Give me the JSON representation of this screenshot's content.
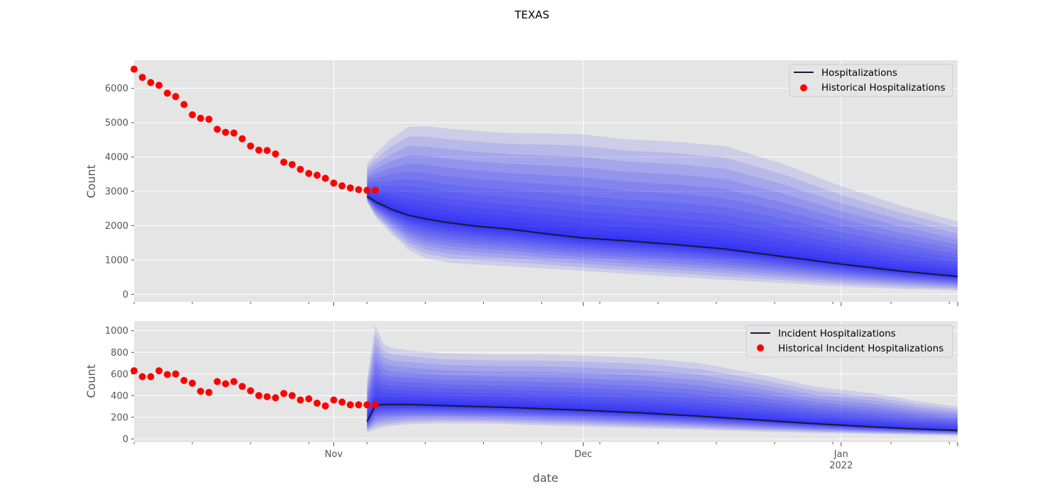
{
  "figure": {
    "suptitle": "TEXAS",
    "xlabel": "date"
  },
  "colors": {
    "background": "#e5e5e5",
    "grid": "#ffffff",
    "fan": "#0000ff",
    "median": "#1a1a2e",
    "historical": "#ff0000",
    "tick_text": "#555555"
  },
  "chart_data": [
    {
      "type": "area",
      "ylabel": "Count",
      "ylim": [
        -220,
        6820
      ],
      "xlim": [
        "2021-10-08",
        "2022-01-15"
      ],
      "yticks": [
        0,
        1000,
        2000,
        3000,
        4000,
        5000,
        6000
      ],
      "xticks": [
        {
          "date": "2021-11-01",
          "label": "Nov"
        },
        {
          "date": "2021-12-01",
          "label": "Dec"
        },
        {
          "date": "2022-01-01",
          "label": "Jan",
          "sublabel": "2022"
        }
      ],
      "grid": true,
      "legend": {
        "position": "top-right",
        "entries": [
          "Hospitalizations",
          "Historical Hospitalizations"
        ]
      },
      "historical": {
        "name": "Historical Hospitalizations",
        "start": "2021-10-08",
        "values": [
          6560,
          6320,
          6170,
          6090,
          5860,
          5760,
          5530,
          5230,
          5130,
          5100,
          4810,
          4720,
          4700,
          4530,
          4320,
          4200,
          4190,
          4090,
          3850,
          3780,
          3640,
          3520,
          3470,
          3380,
          3240,
          3160,
          3100,
          3050,
          3030,
          3030
        ]
      },
      "forecast": {
        "name": "Hospitalizations",
        "dates": [
          "2021-11-05",
          "2021-11-06",
          "2021-11-08",
          "2021-11-10",
          "2021-11-12",
          "2021-11-15",
          "2021-11-18",
          "2021-11-22",
          "2021-11-26",
          "2021-12-01",
          "2021-12-06",
          "2021-12-12",
          "2021-12-18",
          "2021-12-25",
          "2022-01-01",
          "2022-01-08",
          "2022-01-15"
        ],
        "median": [
          2850,
          2700,
          2470,
          2300,
          2200,
          2080,
          1990,
          1900,
          1780,
          1640,
          1560,
          1450,
          1320,
          1100,
          880,
          680,
          520
        ],
        "upper": [
          3800,
          4100,
          4550,
          4880,
          4900,
          4820,
          4760,
          4700,
          4690,
          4660,
          4520,
          4450,
          4320,
          3800,
          3150,
          2600,
          2120
        ],
        "lower": [
          2700,
          2250,
          1750,
          1300,
          1050,
          920,
          870,
          820,
          760,
          680,
          600,
          510,
          420,
          330,
          230,
          160,
          110
        ]
      }
    },
    {
      "type": "area",
      "ylabel": "Count",
      "ylim": [
        -30,
        1090
      ],
      "xlim": [
        "2021-10-08",
        "2022-01-15"
      ],
      "yticks": [
        0,
        200,
        400,
        600,
        800,
        1000
      ],
      "xticks": [
        {
          "date": "2021-11-01",
          "label": "Nov"
        },
        {
          "date": "2021-12-01",
          "label": "Dec"
        },
        {
          "date": "2022-01-01",
          "label": "Jan",
          "sublabel": "2022"
        }
      ],
      "grid": true,
      "legend": {
        "position": "top-right",
        "entries": [
          "Incident Hospitalizations",
          "Historical Incident Hospitalizations"
        ]
      },
      "historical": {
        "name": "Historical Incident Hospitalizations",
        "start": "2021-10-08",
        "values": [
          630,
          575,
          575,
          630,
          595,
          600,
          540,
          515,
          440,
          430,
          530,
          510,
          530,
          485,
          445,
          400,
          390,
          380,
          420,
          400,
          360,
          370,
          330,
          305,
          360,
          340,
          315,
          315,
          315,
          315
        ]
      },
      "forecast": {
        "name": "Incident Hospitalizations",
        "dates": [
          "2021-11-05",
          "2021-11-06",
          "2021-11-07",
          "2021-11-08",
          "2021-11-10",
          "2021-11-14",
          "2021-11-20",
          "2021-11-26",
          "2021-12-01",
          "2021-12-08",
          "2021-12-15",
          "2021-12-22",
          "2021-12-29",
          "2022-01-05",
          "2022-01-10",
          "2022-01-15"
        ],
        "median": [
          160,
          310,
          318,
          318,
          318,
          308,
          295,
          280,
          265,
          240,
          210,
          175,
          140,
          110,
          92,
          78
        ],
        "upper": [
          550,
          1050,
          880,
          840,
          820,
          790,
          780,
          780,
          770,
          750,
          700,
          600,
          480,
          420,
          350,
          300
        ],
        "lower": [
          60,
          90,
          110,
          120,
          135,
          145,
          140,
          125,
          115,
          100,
          85,
          68,
          55,
          45,
          38,
          30
        ]
      }
    }
  ]
}
